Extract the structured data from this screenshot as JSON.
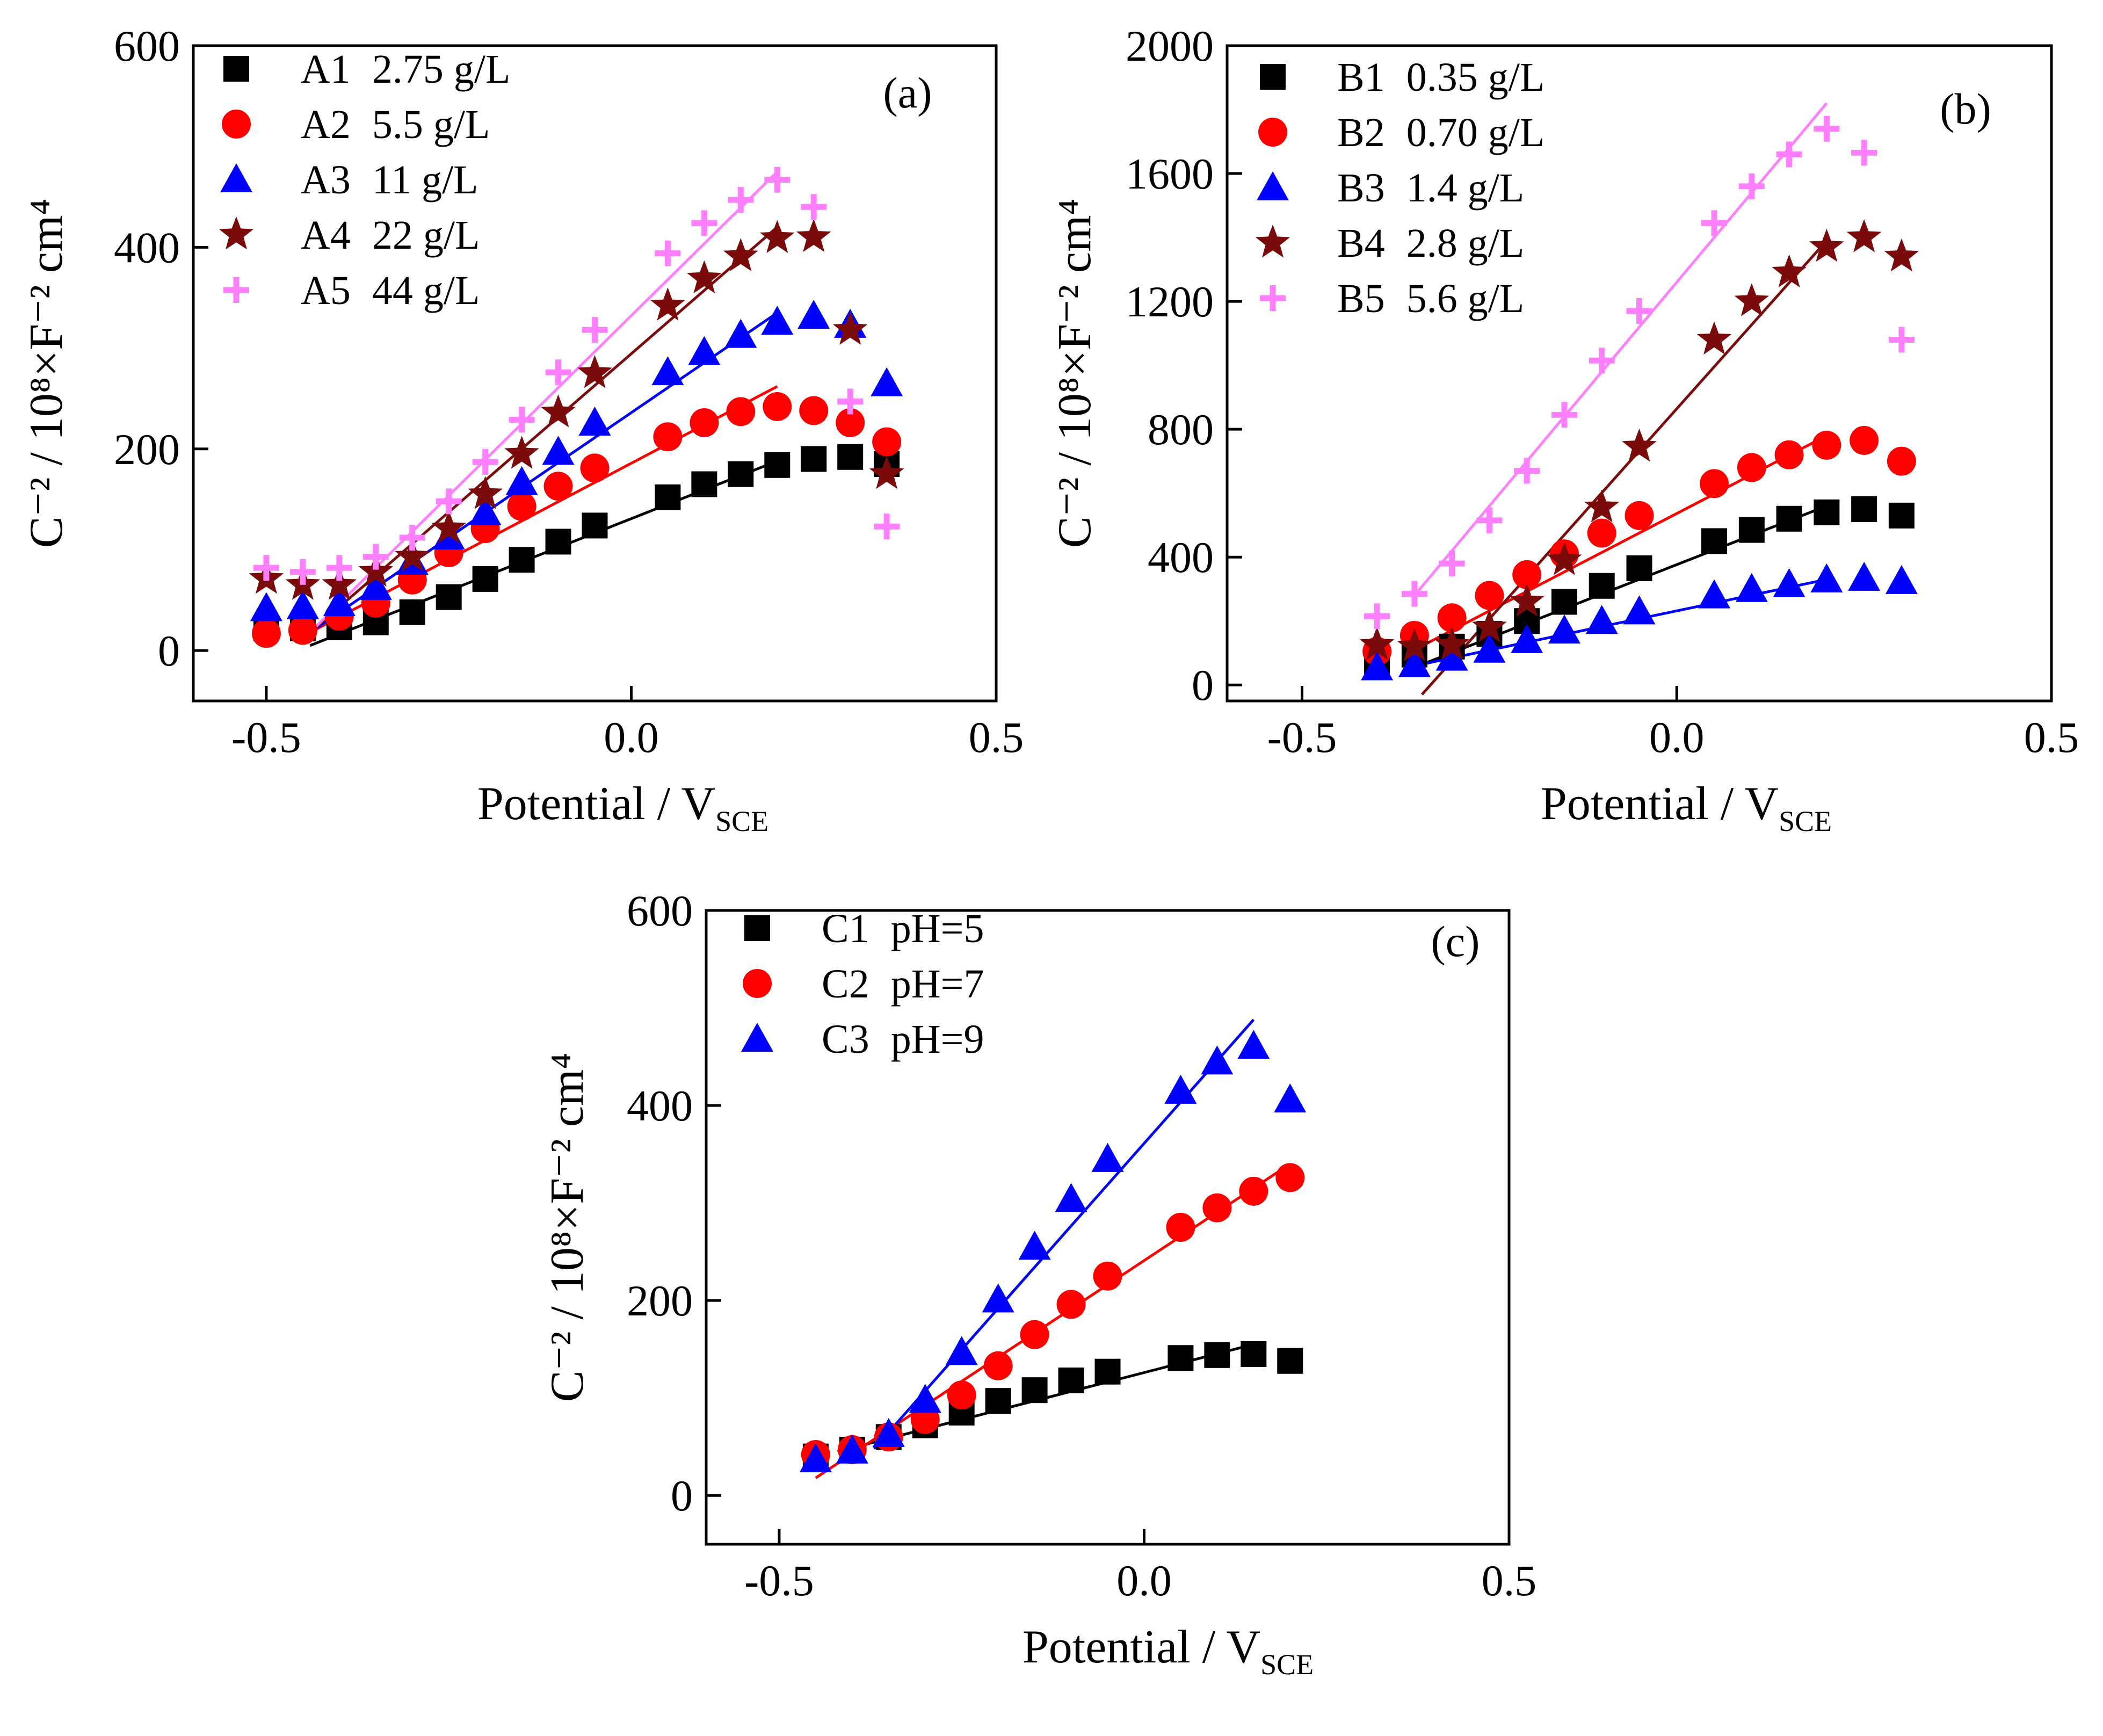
{
  "figure": {
    "panels": [
      "(a)",
      "(b)",
      "(c)"
    ]
  },
  "chart_data": [
    {
      "type": "scatter",
      "panel_label": "(a)",
      "xlabel": "Potential / V",
      "xlabel_sub": "SCE",
      "ylabel": "C⁻² / 10⁸×F⁻² cm⁴",
      "xlim": [
        -0.6,
        0.5
      ],
      "ylim": [
        -50,
        600
      ],
      "xticks": [
        -0.5,
        0.0,
        0.5
      ],
      "xtick_labels": [
        "-0.5",
        "0.0",
        "0.5"
      ],
      "yticks": [
        0,
        200,
        400,
        600
      ],
      "ytick_labels": [
        "0",
        "200",
        "400",
        "600"
      ],
      "legend_position": "top-left",
      "series": [
        {
          "name": "A1",
          "label": "2.75 g/L",
          "marker": "square",
          "color": "#000000",
          "x": [
            -0.5,
            -0.45,
            -0.4,
            -0.35,
            -0.3,
            -0.25,
            -0.2,
            -0.15,
            -0.1,
            -0.05,
            0.05,
            0.1,
            0.15,
            0.2,
            0.25,
            0.3,
            0.35
          ],
          "y": [
            22,
            22,
            23,
            28,
            38,
            53,
            71,
            90,
            108,
            124,
            152,
            165,
            175,
            184,
            190,
            192,
            185
          ],
          "fit": [
            [
              -0.44,
              5
            ],
            [
              0.2,
              188
            ]
          ]
        },
        {
          "name": "A2",
          "label": "5.5 g/L",
          "marker": "circle",
          "color": "#ff0000",
          "x": [
            -0.5,
            -0.45,
            -0.4,
            -0.35,
            -0.3,
            -0.25,
            -0.2,
            -0.15,
            -0.1,
            -0.05,
            0.05,
            0.1,
            0.15,
            0.2,
            0.25,
            0.3,
            0.35
          ],
          "y": [
            17,
            20,
            34,
            47,
            70,
            97,
            121,
            143,
            163,
            181,
            212,
            226,
            237,
            242,
            238,
            226,
            207
          ],
          "fit": [
            [
              -0.44,
              18
            ],
            [
              0.2,
              262
            ]
          ]
        },
        {
          "name": "A3",
          "label": "11 g/L",
          "marker": "triangle",
          "color": "#0000ff",
          "x": [
            -0.5,
            -0.45,
            -0.4,
            -0.35,
            -0.3,
            -0.25,
            -0.2,
            -0.15,
            -0.1,
            -0.05,
            0.05,
            0.1,
            0.15,
            0.2,
            0.25,
            0.3,
            0.35
          ],
          "y": [
            42,
            44,
            47,
            63,
            88,
            113,
            137,
            167,
            197,
            226,
            276,
            296,
            313,
            326,
            332,
            323,
            265
          ],
          "fit": [
            [
              -0.44,
              18
            ],
            [
              0.2,
              335
            ]
          ]
        },
        {
          "name": "A4",
          "label": "22 g/L",
          "marker": "star",
          "color": "#7b0a0a",
          "x": [
            -0.5,
            -0.45,
            -0.4,
            -0.35,
            -0.3,
            -0.25,
            -0.2,
            -0.15,
            -0.1,
            -0.05,
            0.05,
            0.1,
            0.15,
            0.2,
            0.25,
            0.3,
            0.35
          ],
          "y": [
            71,
            65,
            65,
            78,
            93,
            121,
            155,
            195,
            236,
            275,
            342,
            369,
            391,
            409,
            410,
            318,
            175
          ],
          "fit": [
            [
              -0.44,
              18
            ],
            [
              0.2,
              420
            ]
          ]
        },
        {
          "name": "A5",
          "label": "44 g/L",
          "marker": "plus",
          "color": "#ff80ff",
          "x": [
            -0.5,
            -0.45,
            -0.4,
            -0.35,
            -0.3,
            -0.25,
            -0.2,
            -0.15,
            -0.1,
            -0.05,
            0.05,
            0.1,
            0.15,
            0.2,
            0.25,
            0.3,
            0.35
          ],
          "y": [
            82,
            78,
            82,
            93,
            112,
            148,
            187,
            229,
            276,
            318,
            394,
            424,
            447,
            467,
            440,
            247,
            123
          ],
          "fit": [
            [
              -0.44,
              18
            ],
            [
              0.2,
              475
            ]
          ]
        }
      ]
    },
    {
      "type": "scatter",
      "panel_label": "(b)",
      "xlabel": "Potential / V",
      "xlabel_sub": "SCE",
      "ylabel": "C⁻² / 10⁸×F⁻² cm⁴",
      "xlim": [
        -0.6,
        0.5
      ],
      "ylim": [
        -50,
        2000
      ],
      "xticks": [
        -0.5,
        0.0,
        0.5
      ],
      "xtick_labels": [
        "-0.5",
        "0.0",
        "0.5"
      ],
      "yticks": [
        0,
        400,
        800,
        1200,
        1600,
        2000
      ],
      "ytick_labels": [
        "0",
        "400",
        "800",
        "1200",
        "1600",
        "2000"
      ],
      "legend_position": "top-left",
      "series": [
        {
          "name": "B1",
          "label": "0.35 g/L",
          "marker": "square",
          "color": "#000000",
          "x": [
            -0.4,
            -0.35,
            -0.3,
            -0.25,
            -0.2,
            -0.15,
            -0.1,
            -0.05,
            0.05,
            0.1,
            0.15,
            0.2,
            0.25,
            0.3
          ],
          "y": [
            75,
            95,
            120,
            160,
            200,
            260,
            310,
            365,
            450,
            485,
            520,
            540,
            550,
            530
          ],
          "fit": [
            [
              -0.35,
              55
            ],
            [
              0.2,
              560
            ]
          ]
        },
        {
          "name": "B2",
          "label": "0.70 g/L",
          "marker": "circle",
          "color": "#ff0000",
          "x": [
            -0.4,
            -0.35,
            -0.3,
            -0.25,
            -0.2,
            -0.15,
            -0.1,
            -0.05,
            0.05,
            0.1,
            0.15,
            0.2,
            0.25,
            0.3
          ],
          "y": [
            105,
            155,
            210,
            280,
            345,
            410,
            475,
            530,
            630,
            680,
            720,
            750,
            765,
            700
          ],
          "fit": [
            [
              -0.35,
              110
            ],
            [
              0.2,
              780
            ]
          ]
        },
        {
          "name": "B3",
          "label": "1.4 g/L",
          "marker": "triangle",
          "color": "#0000ff",
          "x": [
            -0.4,
            -0.35,
            -0.3,
            -0.25,
            -0.2,
            -0.15,
            -0.1,
            -0.05,
            0.05,
            0.1,
            0.15,
            0.2,
            0.25,
            0.3
          ],
          "y": [
            55,
            65,
            85,
            110,
            140,
            170,
            200,
            230,
            280,
            300,
            315,
            330,
            335,
            325
          ],
          "fit": [
            [
              -0.35,
              60
            ],
            [
              0.2,
              330
            ]
          ]
        },
        {
          "name": "B4",
          "label": "2.8 g/L",
          "marker": "star",
          "color": "#7b0a0a",
          "x": [
            -0.4,
            -0.35,
            -0.3,
            -0.25,
            -0.2,
            -0.15,
            -0.1,
            -0.05,
            0.05,
            0.1,
            0.15,
            0.2,
            0.25,
            0.3
          ],
          "y": [
            125,
            120,
            125,
            180,
            260,
            390,
            555,
            745,
            1080,
            1200,
            1290,
            1370,
            1400,
            1340
          ],
          "fit": [
            [
              -0.34,
              -30
            ],
            [
              0.2,
              1390
            ]
          ]
        },
        {
          "name": "B5",
          "label": "5.6 g/L",
          "marker": "plus",
          "color": "#ff80ff",
          "x": [
            -0.4,
            -0.35,
            -0.3,
            -0.25,
            -0.2,
            -0.15,
            -0.1,
            -0.05,
            0.05,
            0.1,
            0.15,
            0.2,
            0.25,
            0.3
          ],
          "y": [
            215,
            285,
            380,
            515,
            670,
            845,
            1015,
            1170,
            1445,
            1560,
            1660,
            1740,
            1665,
            1080
          ],
          "fit": [
            [
              -0.35,
              280
            ],
            [
              0.2,
              1820
            ]
          ]
        }
      ]
    },
    {
      "type": "scatter",
      "panel_label": "(c)",
      "xlabel": "Potential / V",
      "xlabel_sub": "SCE",
      "ylabel": "C⁻² / 10⁸×F⁻² cm⁴",
      "xlim": [
        -0.6,
        0.5
      ],
      "ylim": [
        -50,
        600
      ],
      "xticks": [
        -0.5,
        0.0,
        0.5
      ],
      "xtick_labels": [
        "-0.5",
        "0.0",
        "0.5"
      ],
      "yticks": [
        0,
        200,
        400,
        600
      ],
      "ytick_labels": [
        "0",
        "200",
        "400",
        "600"
      ],
      "legend_position": "top-left",
      "series": [
        {
          "name": "C1",
          "label": "pH=5",
          "marker": "square",
          "color": "#000000",
          "x": [
            -0.45,
            -0.4,
            -0.35,
            -0.3,
            -0.25,
            -0.2,
            -0.15,
            -0.1,
            -0.05,
            0.05,
            0.1,
            0.15,
            0.2
          ],
          "y": [
            40,
            47,
            60,
            72,
            85,
            97,
            108,
            118,
            127,
            141,
            144,
            145,
            138
          ],
          "fit": [
            [
              -0.42,
              45
            ],
            [
              0.15,
              155
            ]
          ]
        },
        {
          "name": "C2",
          "label": "pH=7",
          "marker": "circle",
          "color": "#ff0000",
          "x": [
            -0.45,
            -0.4,
            -0.35,
            -0.3,
            -0.25,
            -0.2,
            -0.15,
            -0.1,
            -0.05,
            0.05,
            0.1,
            0.15,
            0.2
          ],
          "y": [
            42,
            47,
            60,
            78,
            103,
            133,
            165,
            196,
            225,
            275,
            295,
            312,
            326
          ],
          "fit": [
            [
              -0.45,
              18
            ],
            [
              0.2,
              340
            ]
          ]
        },
        {
          "name": "C3",
          "label": "pH=9",
          "marker": "triangle",
          "color": "#0000ff",
          "x": [
            -0.45,
            -0.4,
            -0.35,
            -0.3,
            -0.25,
            -0.2,
            -0.15,
            -0.1,
            -0.05,
            0.05,
            0.1,
            0.15,
            0.2
          ],
          "y": [
            37,
            46,
            63,
            98,
            147,
            201,
            255,
            304,
            345,
            415,
            445,
            461,
            406
          ],
          "fit": [
            [
              -0.37,
              48
            ],
            [
              0.15,
              488
            ]
          ]
        }
      ]
    }
  ]
}
